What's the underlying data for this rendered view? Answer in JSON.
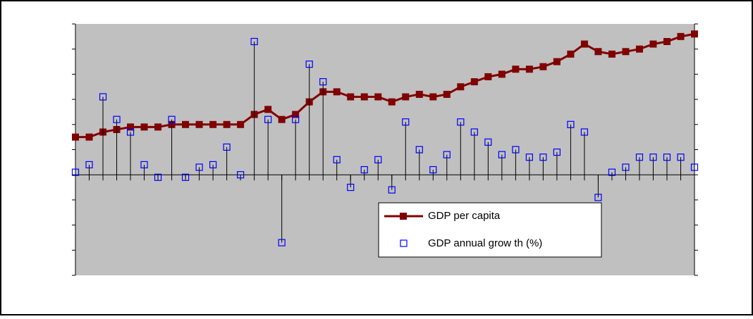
{
  "chart_data": {
    "type": "line",
    "categories": [
      null,
      null,
      null,
      null,
      null,
      null,
      null,
      null,
      null,
      null,
      null,
      null,
      null,
      null,
      null,
      null,
      null,
      null,
      null,
      null,
      null,
      null,
      null,
      null,
      null,
      null,
      null,
      null,
      null,
      null,
      null,
      null,
      null,
      null,
      null,
      null,
      null,
      null,
      null,
      null,
      null,
      null,
      null,
      null,
      null,
      null
    ],
    "series": [
      {
        "name": "GDP per capita",
        "color": "#800000",
        "axis": "y2",
        "values": [
          5.5,
          5.5,
          5.7,
          5.8,
          5.9,
          5.9,
          5.9,
          6.0,
          6.0,
          6.0,
          6.0,
          6.0,
          6.0,
          6.4,
          6.6,
          6.2,
          6.4,
          6.9,
          7.3,
          7.3,
          7.1,
          7.1,
          7.1,
          6.9,
          7.1,
          7.2,
          7.1,
          7.2,
          7.5,
          7.7,
          7.9,
          8.0,
          8.2,
          8.2,
          8.3,
          8.5,
          8.8,
          9.2,
          8.9,
          8.8,
          8.9,
          9.0,
          9.2,
          9.3,
          9.5,
          9.6
        ]
      },
      {
        "name": "GDP annual grow th (%)",
        "color": "#0000ff",
        "values": [
          0.1,
          0.4,
          3.1,
          2.2,
          1.7,
          0.4,
          -0.1,
          2.2,
          -0.1,
          0.3,
          0.4,
          1.1,
          0,
          5.3,
          2.2,
          -2.7,
          2.2,
          4.4,
          3.7,
          0.6,
          -0.5,
          0.2,
          0.6,
          -0.6,
          2.1,
          1.0,
          0.2,
          0.8,
          2.1,
          1.7,
          1.3,
          0.8,
          1.0,
          0.7,
          0.7,
          0.9,
          2.0,
          1.7,
          -0.9,
          0.1,
          0.3,
          0.7,
          0.7,
          0.7,
          0.7,
          0.3
        ]
      }
    ],
    "ylim": [
      -4,
      6
    ],
    "yticks": [
      -4,
      -3,
      -2,
      -1,
      0,
      1,
      2,
      3,
      4,
      5,
      6
    ],
    "y2lim": [
      0,
      10
    ],
    "y2ticks": [
      0,
      1,
      2,
      3,
      4,
      5,
      6,
      7,
      8,
      9,
      10
    ]
  }
}
